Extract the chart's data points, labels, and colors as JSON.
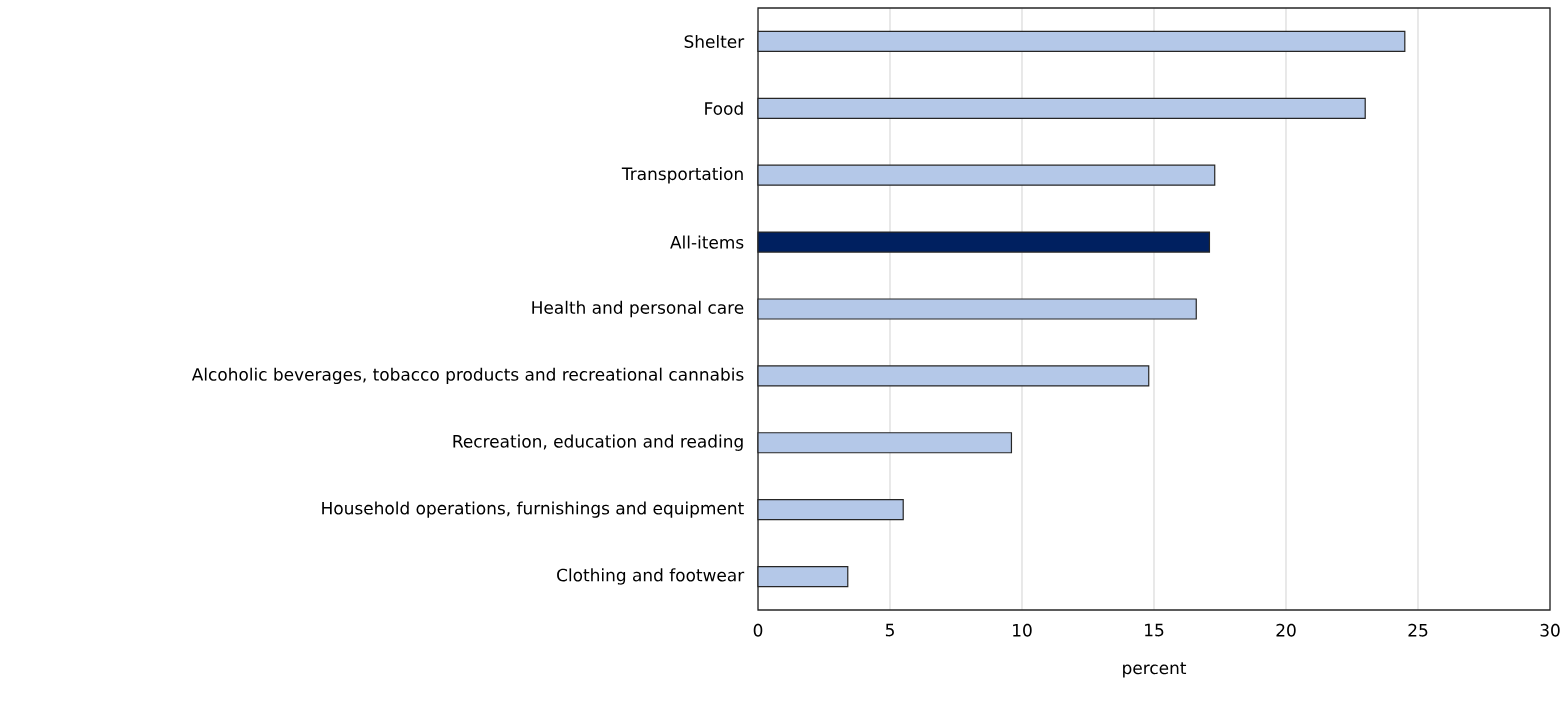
{
  "chart_data": {
    "type": "bar",
    "orientation": "horizontal",
    "xlabel": "percent",
    "categories": [
      "Shelter",
      "Food",
      "Transportation",
      "All-items",
      "Health and personal care",
      "Alcoholic beverages, tobacco products and recreational cannabis",
      "Recreation, education and reading",
      "Household operations, furnishings and equipment",
      "Clothing and footwear"
    ],
    "values": [
      24.5,
      23.0,
      17.3,
      17.1,
      16.6,
      14.8,
      9.6,
      5.5,
      3.4
    ],
    "colors": [
      "#b4c8e8",
      "#b4c8e8",
      "#b4c8e8",
      "#002060",
      "#b4c8e8",
      "#b4c8e8",
      "#b4c8e8",
      "#b4c8e8",
      "#b4c8e8"
    ],
    "xlim": [
      0,
      30
    ],
    "xticks": [
      0,
      5,
      10,
      15,
      20,
      25,
      30
    ],
    "grid": "x"
  }
}
